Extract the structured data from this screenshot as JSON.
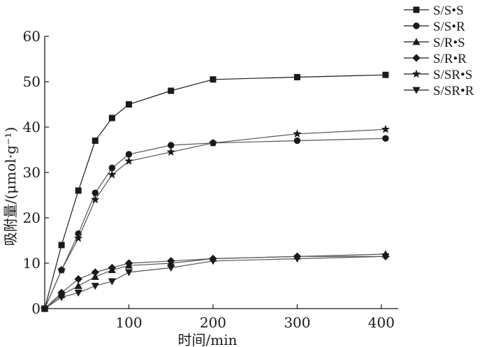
{
  "chart_data": {
    "type": "line",
    "title": "",
    "xlabel": "时间/min",
    "ylabel": "吸附量/(μmol·g⁻¹)",
    "xlim": [
      0,
      420
    ],
    "ylim": [
      0,
      60
    ],
    "xticks": [
      100,
      200,
      300,
      400
    ],
    "yticks": [
      0,
      10,
      20,
      30,
      40,
      50,
      60
    ],
    "grid": false,
    "legend_position": "top-right",
    "series": [
      {
        "name": "S/S•S",
        "marker": "square",
        "color": "#1a1a1a",
        "x": [
          0,
          20,
          40,
          60,
          80,
          100,
          150,
          200,
          300,
          405
        ],
        "y": [
          0,
          14,
          26,
          37,
          42,
          45,
          48,
          50.5,
          51,
          51.5
        ]
      },
      {
        "name": "S/S•R",
        "marker": "circle",
        "color": "#4d4d4d",
        "x": [
          0,
          20,
          40,
          60,
          80,
          100,
          150,
          200,
          300,
          405
        ],
        "y": [
          0,
          8.5,
          16.5,
          25.5,
          31,
          34,
          36,
          36.5,
          37,
          37.5
        ]
      },
      {
        "name": "S/R•S",
        "marker": "triangle-up",
        "color": "#4d4d4d",
        "x": [
          0,
          20,
          40,
          60,
          80,
          100,
          150,
          200,
          300,
          405
        ],
        "y": [
          0,
          3,
          5,
          7,
          8.5,
          9.5,
          10,
          11,
          11.5,
          12
        ]
      },
      {
        "name": "S/R•R",
        "marker": "diamond",
        "color": "#4d4d4d",
        "x": [
          0,
          20,
          40,
          60,
          80,
          100,
          150,
          200,
          300,
          405
        ],
        "y": [
          0,
          3.5,
          6.5,
          8,
          9,
          10,
          10.5,
          11,
          11.5,
          11.5
        ]
      },
      {
        "name": "S/SR•S",
        "marker": "star",
        "color": "#4d4d4d",
        "x": [
          0,
          20,
          40,
          60,
          80,
          100,
          150,
          200,
          300,
          405
        ],
        "y": [
          0,
          8.5,
          15.5,
          24,
          29.5,
          32.5,
          34.5,
          36.5,
          38.5,
          39.5
        ]
      },
      {
        "name": "S/SR•R",
        "marker": "triangle-down",
        "color": "#4d4d4d",
        "x": [
          0,
          20,
          40,
          60,
          80,
          100,
          150,
          200,
          300,
          405
        ],
        "y": [
          0,
          2.5,
          3.5,
          5,
          6,
          8,
          9,
          10.5,
          11,
          11.5
        ]
      }
    ]
  }
}
